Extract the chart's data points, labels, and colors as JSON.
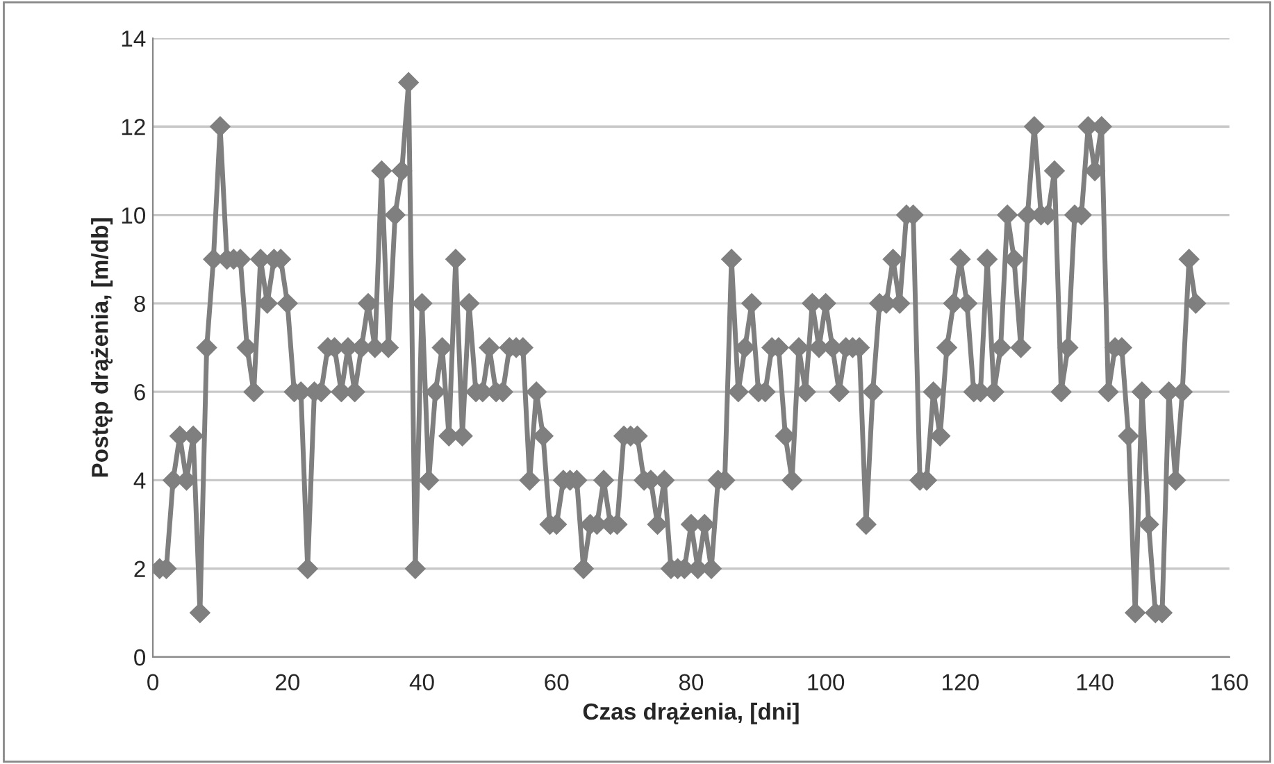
{
  "chart_data": {
    "type": "line",
    "xlabel": "Czas drążenia, [dni]",
    "ylabel": "Postęp drążenia, [m/db]",
    "x": [
      1,
      2,
      3,
      4,
      5,
      6,
      7,
      8,
      9,
      10,
      11,
      12,
      13,
      14,
      15,
      16,
      17,
      18,
      19,
      20,
      21,
      22,
      23,
      24,
      25,
      26,
      27,
      28,
      29,
      30,
      31,
      32,
      33,
      34,
      35,
      36,
      37,
      38,
      39,
      40,
      41,
      42,
      43,
      44,
      45,
      46,
      47,
      48,
      49,
      50,
      51,
      52,
      53,
      54,
      55,
      56,
      57,
      58,
      59,
      60,
      61,
      62,
      63,
      64,
      65,
      66,
      67,
      68,
      69,
      70,
      71,
      72,
      73,
      74,
      75,
      76,
      77,
      78,
      79,
      80,
      81,
      82,
      83,
      84,
      85,
      86,
      87,
      88,
      89,
      90,
      91,
      92,
      93,
      94,
      95,
      96,
      97,
      98,
      99,
      100,
      101,
      102,
      103,
      104,
      105,
      106,
      107,
      108,
      109,
      110,
      111,
      112,
      113,
      114,
      115,
      116,
      117,
      118,
      119,
      120,
      121,
      122,
      123,
      124,
      125,
      126,
      127,
      128,
      129,
      130,
      131,
      132,
      133,
      134,
      135,
      136,
      137,
      138,
      139,
      140,
      141,
      142,
      143,
      144,
      145,
      146,
      147,
      148,
      149,
      150,
      151,
      152,
      153,
      154,
      155
    ],
    "series": [
      {
        "color": "#7f7f7f",
        "values": [
          2,
          2,
          4,
          5,
          4,
          5,
          1,
          7,
          9,
          12,
          9,
          9,
          9,
          7,
          6,
          9,
          8,
          9,
          9,
          8,
          6,
          6,
          2,
          6,
          6,
          7,
          7,
          6,
          7,
          6,
          7,
          8,
          7,
          11,
          7,
          10,
          11,
          13,
          2,
          8,
          4,
          6,
          7,
          5,
          9,
          5,
          8,
          6,
          6,
          7,
          6,
          6,
          7,
          7,
          7,
          4,
          6,
          5,
          3,
          3,
          4,
          4,
          4,
          2,
          3,
          3,
          4,
          3,
          3,
          5,
          5,
          5,
          4,
          4,
          3,
          4,
          2,
          2,
          2,
          3,
          2,
          3,
          2,
          4,
          4,
          9,
          6,
          7,
          8,
          6,
          6,
          7,
          7,
          5,
          4,
          7,
          6,
          8,
          7,
          8,
          7,
          6,
          7,
          7,
          7,
          3,
          6,
          8,
          8,
          9,
          8,
          10,
          10,
          4,
          4,
          6,
          5,
          7,
          8,
          9,
          8,
          6,
          6,
          9,
          6,
          7,
          10,
          9,
          7,
          10,
          12,
          10,
          10,
          11,
          6,
          7,
          10,
          10,
          12,
          11,
          12,
          6,
          7,
          7,
          5,
          1,
          6,
          3,
          1,
          1,
          6,
          4,
          6,
          9,
          8
        ]
      }
    ],
    "xlim": [
      0,
      160
    ],
    "xticks": [
      0,
      20,
      40,
      60,
      80,
      100,
      120,
      140,
      160
    ],
    "ylim": [
      0,
      14
    ],
    "yticks": [
      0,
      2,
      4,
      6,
      8,
      10,
      12,
      14
    ],
    "grid": "y",
    "marker": "diamond",
    "line_style": "solid",
    "legend": false
  }
}
